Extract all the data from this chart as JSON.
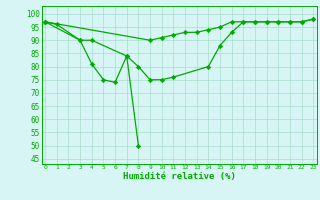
{
  "x": [
    0,
    1,
    2,
    3,
    4,
    5,
    6,
    7,
    8,
    9,
    10,
    11,
    12,
    13,
    14,
    15,
    16,
    17,
    18,
    19,
    20,
    21,
    22,
    23
  ],
  "line1": [
    97,
    96,
    null,
    90,
    81,
    75,
    74,
    84,
    50,
    null,
    null,
    null,
    null,
    null,
    null,
    null,
    null,
    null,
    null,
    null,
    null,
    null,
    null,
    null
  ],
  "line2": [
    97,
    null,
    null,
    90,
    90,
    null,
    null,
    84,
    80,
    75,
    75,
    76,
    null,
    null,
    80,
    88,
    93,
    97,
    97,
    97,
    97,
    97,
    97,
    98
  ],
  "line3": [
    97,
    null,
    null,
    null,
    null,
    null,
    null,
    null,
    null,
    90,
    91,
    92,
    93,
    93,
    94,
    95,
    97,
    97,
    97,
    97,
    97,
    97,
    97,
    98
  ],
  "bg_color": "#d8f5f5",
  "grid_color": "#aaddcc",
  "line_color": "#00aa00",
  "xlabel": "Humidité relative (%)",
  "ylabel_ticks": [
    45,
    50,
    55,
    60,
    65,
    70,
    75,
    80,
    85,
    90,
    95,
    100
  ],
  "ylim": [
    43,
    103
  ],
  "xlim": [
    -0.3,
    23.3
  ],
  "xtick_fontsize": 4.5,
  "ytick_fontsize": 5.5,
  "xlabel_fontsize": 6.5,
  "linewidth": 0.9,
  "markersize": 2.2
}
